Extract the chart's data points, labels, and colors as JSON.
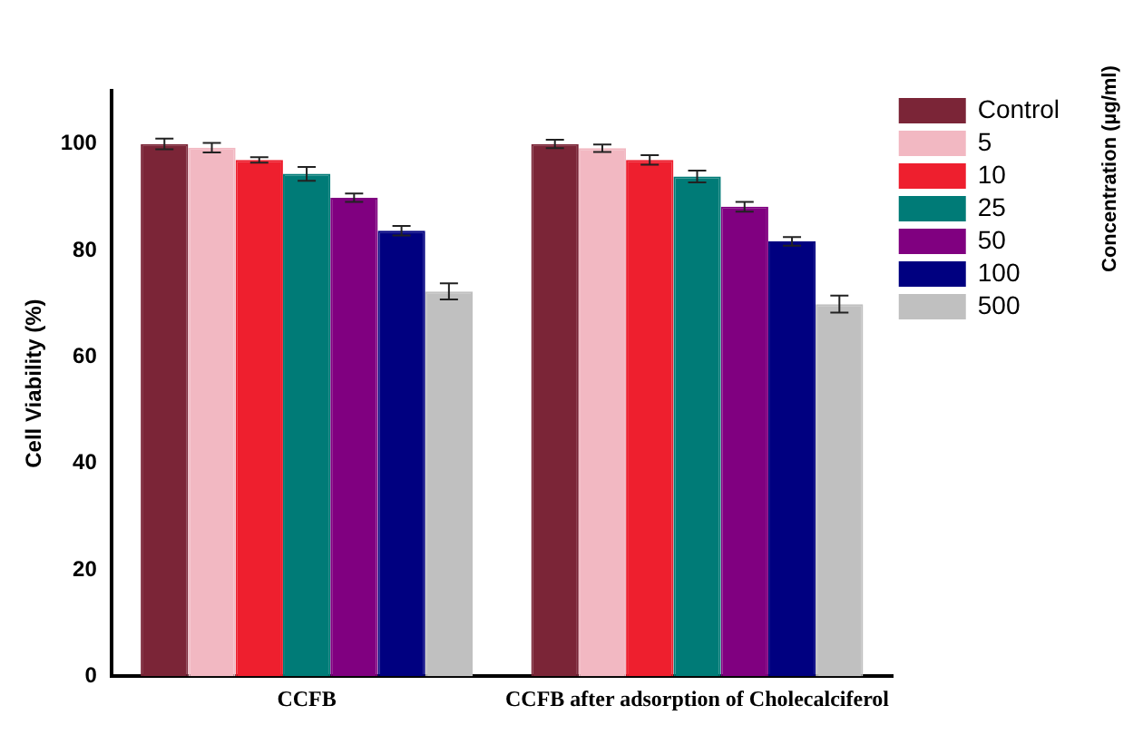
{
  "chart_data": {
    "type": "bar",
    "ylabel": "Cell Viability (%)",
    "legend_title": "Concentration (µg/ml)",
    "categories": [
      "CCFB",
      "CCFB after adsorption of Cholecalciferol"
    ],
    "ylim": [
      0,
      110
    ],
    "yticks": [
      0,
      20,
      40,
      60,
      80,
      100
    ],
    "grid": false,
    "legend": "top right",
    "series": [
      {
        "name": "Control",
        "color": "#7b2537",
        "values": [
          100,
          100
        ],
        "errors": [
          1,
          0.8
        ]
      },
      {
        "name": "5",
        "color": "#f2b8c2",
        "values": [
          99.3,
          99.2
        ],
        "errors": [
          0.9,
          0.7
        ]
      },
      {
        "name": "10",
        "color": "#ee1f2e",
        "values": [
          97,
          97
        ],
        "errors": [
          0.5,
          0.9
        ]
      },
      {
        "name": "25",
        "color": "#007b77",
        "values": [
          94.4,
          93.9
        ],
        "errors": [
          1.3,
          1.1
        ]
      },
      {
        "name": "50",
        "color": "#800080",
        "values": [
          89.9,
          88.2
        ],
        "errors": [
          0.8,
          0.9
        ]
      },
      {
        "name": "100",
        "color": "#000080",
        "values": [
          83.7,
          81.7
        ],
        "errors": [
          0.9,
          0.8
        ]
      },
      {
        "name": "500",
        "color": "#c0c0c0",
        "values": [
          72.3,
          69.9
        ],
        "errors": [
          1.5,
          1.6
        ]
      }
    ]
  }
}
